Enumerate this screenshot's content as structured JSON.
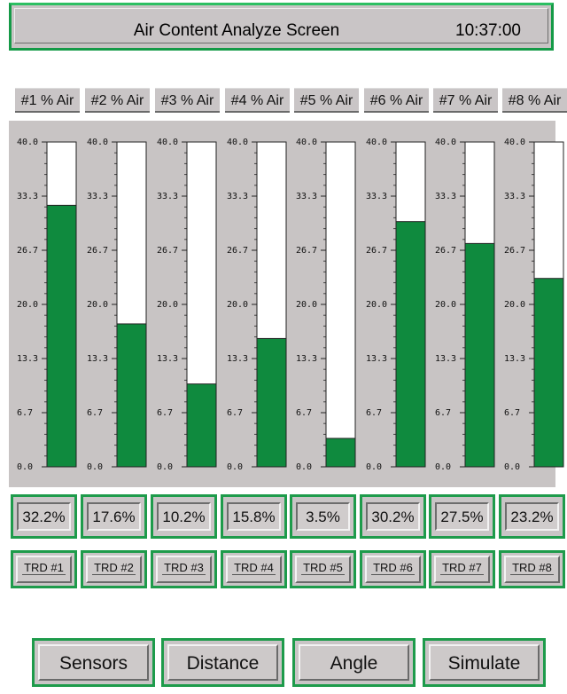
{
  "header": {
    "title": "Air Content Analyze Screen",
    "time": "10:37:00"
  },
  "columns": [
    {
      "label": "#1 % Air",
      "value": 32.2,
      "value_text": "32.2%",
      "trd": "TRD #1"
    },
    {
      "label": "#2 % Air",
      "value": 17.6,
      "value_text": "17.6%",
      "trd": "TRD #2"
    },
    {
      "label": "#3 % Air",
      "value": 10.2,
      "value_text": "10.2%",
      "trd": "TRD #3"
    },
    {
      "label": "#4 % Air",
      "value": 15.8,
      "value_text": "15.8%",
      "trd": "TRD #4"
    },
    {
      "label": "#5 % Air",
      "value": 3.5,
      "value_text": "3.5%",
      "trd": "TRD #5"
    },
    {
      "label": "#6 % Air",
      "value": 30.2,
      "value_text": "30.2%",
      "trd": "TRD #6"
    },
    {
      "label": "#7 % Air",
      "value": 27.5,
      "value_text": "27.5%",
      "trd": "TRD #7"
    },
    {
      "label": "#8 % Air",
      "value": 23.2,
      "value_text": "23.2%",
      "trd": "TRD #8"
    }
  ],
  "scale": {
    "min": 0,
    "max": 40,
    "tick_labels": [
      "40.0",
      "33.3",
      "26.7",
      "20.0",
      "13.3",
      "6.7",
      "0.0"
    ]
  },
  "buttons": [
    "Sensors",
    "Distance",
    "Angle",
    "Simulate"
  ],
  "colors": {
    "fill": "#0f8a3e",
    "frame": "#1e9b4b",
    "panel": "#c8c4c4"
  }
}
